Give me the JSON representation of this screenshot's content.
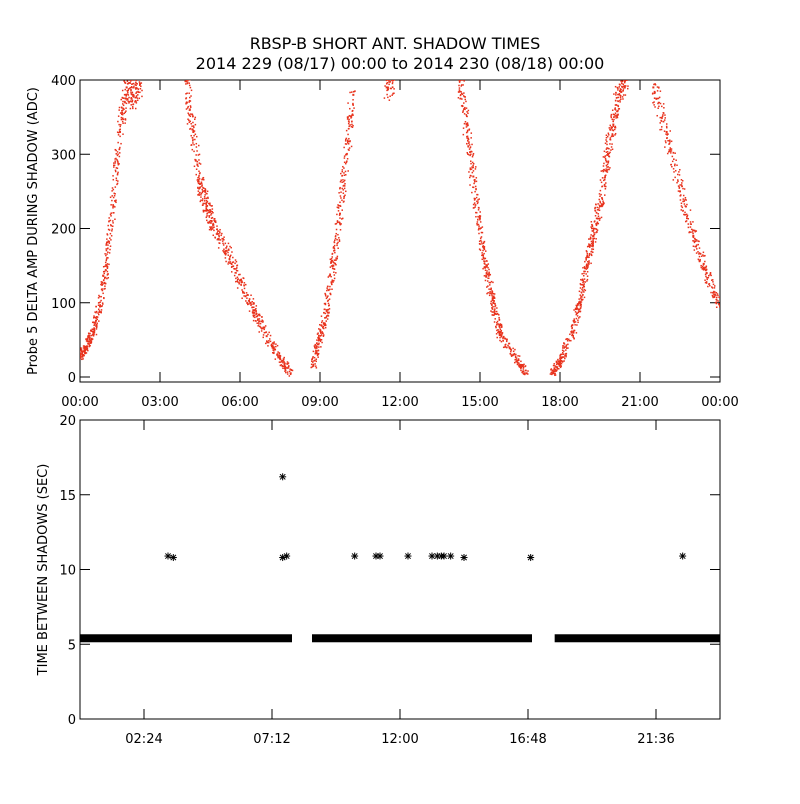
{
  "title_line1": "RBSP-B SHORT ANT. SHADOW TIMES",
  "title_line2": "2014 229 (08/17) 00:00 to 2014 230 (08/18) 00:00",
  "colors": {
    "red": "#e8321c",
    "black": "#000000",
    "frame": "#000000"
  },
  "chart_data": [
    {
      "type": "scatter",
      "ylabel": "Probe 5 DELTA AMP DURING SHADOW (ADC)",
      "xlabel": "",
      "xlim": [
        0,
        24
      ],
      "ylim": [
        0,
        400
      ],
      "x_ticks": [
        {
          "v": 0,
          "label": "00:00"
        },
        {
          "v": 3,
          "label": "03:00"
        },
        {
          "v": 6,
          "label": "06:00"
        },
        {
          "v": 9,
          "label": "09:00"
        },
        {
          "v": 12,
          "label": "12:00"
        },
        {
          "v": 15,
          "label": "15:00"
        },
        {
          "v": 18,
          "label": "18:00"
        },
        {
          "v": 21,
          "label": "21:00"
        },
        {
          "v": 24,
          "label": "00:00"
        }
      ],
      "y_ticks": [
        {
          "v": 0,
          "label": "0"
        },
        {
          "v": 100,
          "label": "100"
        },
        {
          "v": 200,
          "label": "200"
        },
        {
          "v": 300,
          "label": "300"
        },
        {
          "v": 400,
          "label": "400"
        }
      ],
      "series": [
        {
          "color": "#e8321c",
          "points": [
            [
              0.0,
              28
            ],
            [
              0.25,
              40
            ],
            [
              0.5,
              60
            ],
            [
              0.75,
              95
            ],
            [
              1.0,
              150
            ],
            [
              1.25,
              230
            ],
            [
              1.5,
              330
            ],
            [
              1.75,
              390
            ],
            [
              2.0,
              380
            ],
            [
              2.25,
              395
            ],
            [
              4.0,
              400
            ],
            [
              4.25,
              330
            ],
            [
              4.5,
              260
            ],
            [
              4.75,
              230
            ],
            [
              5.0,
              205
            ],
            [
              5.5,
              170
            ],
            [
              6.0,
              130
            ],
            [
              6.5,
              90
            ],
            [
              7.0,
              55
            ],
            [
              7.5,
              25
            ],
            [
              7.9,
              5
            ],
            [
              8.75,
              15
            ],
            [
              9.0,
              50
            ],
            [
              9.25,
              90
            ],
            [
              9.5,
              150
            ],
            [
              9.75,
              220
            ],
            [
              10.0,
              300
            ],
            [
              10.25,
              380
            ],
            [
              11.5,
              390
            ],
            [
              11.75,
              400
            ],
            [
              14.25,
              400
            ],
            [
              14.5,
              340
            ],
            [
              14.75,
              270
            ],
            [
              15.0,
              200
            ],
            [
              15.25,
              140
            ],
            [
              15.5,
              100
            ],
            [
              15.75,
              60
            ],
            [
              16.25,
              30
            ],
            [
              16.75,
              5
            ],
            [
              17.75,
              5
            ],
            [
              18.0,
              20
            ],
            [
              18.5,
              60
            ],
            [
              18.75,
              100
            ],
            [
              19.0,
              150
            ],
            [
              19.25,
              190
            ],
            [
              19.5,
              230
            ],
            [
              19.75,
              290
            ],
            [
              20.0,
              340
            ],
            [
              20.25,
              385
            ],
            [
              20.5,
              400
            ],
            [
              21.5,
              390
            ],
            [
              22.0,
              330
            ],
            [
              22.5,
              250
            ],
            [
              23.0,
              190
            ],
            [
              23.5,
              140
            ],
            [
              24.0,
              95
            ]
          ]
        }
      ]
    },
    {
      "type": "scatter",
      "ylabel": "TIME BETWEEN SHADOWS (SEC)",
      "xlabel": "",
      "xlim": [
        0,
        24
      ],
      "ylim": [
        0,
        20
      ],
      "x_ticks": [
        {
          "v": 2.4,
          "label": "02:24"
        },
        {
          "v": 7.2,
          "label": "07:12"
        },
        {
          "v": 12.0,
          "label": "12:00"
        },
        {
          "v": 16.8,
          "label": "16:48"
        },
        {
          "v": 21.6,
          "label": "21:36"
        }
      ],
      "y_ticks": [
        {
          "v": 0,
          "label": "0"
        },
        {
          "v": 5,
          "label": "5"
        },
        {
          "v": 10,
          "label": "10"
        },
        {
          "v": 15,
          "label": "15"
        },
        {
          "v": 20,
          "label": "20"
        }
      ],
      "baseline_segments": [
        {
          "x_start": 0.0,
          "x_end": 7.95,
          "y": 5.4
        },
        {
          "x_start": 8.7,
          "x_end": 16.95,
          "y": 5.4
        },
        {
          "x_start": 17.8,
          "x_end": 24.0,
          "y": 5.4
        }
      ],
      "series": [
        {
          "color": "#000000",
          "marker": "asterisk",
          "points": [
            [
              3.3,
              10.9
            ],
            [
              3.5,
              10.8
            ],
            [
              7.6,
              16.2
            ],
            [
              7.6,
              10.8
            ],
            [
              7.75,
              10.9
            ],
            [
              10.3,
              10.9
            ],
            [
              11.1,
              10.9
            ],
            [
              11.25,
              10.9
            ],
            [
              12.3,
              10.9
            ],
            [
              13.2,
              10.9
            ],
            [
              13.4,
              10.9
            ],
            [
              13.55,
              10.9
            ],
            [
              13.65,
              10.9
            ],
            [
              13.9,
              10.9
            ],
            [
              14.4,
              10.8
            ],
            [
              16.9,
              10.8
            ],
            [
              22.6,
              10.9
            ]
          ]
        }
      ]
    }
  ]
}
